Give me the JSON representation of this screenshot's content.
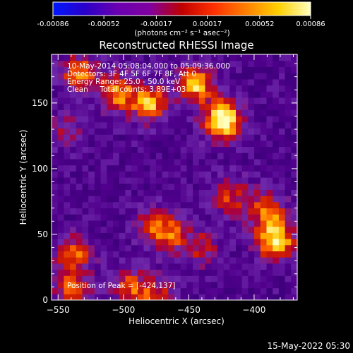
{
  "chart_data": {
    "type": "heatmap",
    "title": "Reconstructed RHESSI Image",
    "xlabel": "Heliocentric X (arcsec)",
    "ylabel": "Heliocentric Y (arcsec)",
    "xlim": [
      -555,
      -367
    ],
    "ylim": [
      0,
      187
    ],
    "x_ticks": [
      -550,
      -500,
      -450,
      -400
    ],
    "y_ticks": [
      0,
      50,
      100,
      150
    ],
    "colorbar": {
      "ticks": [
        "-0.00086",
        "-0.00052",
        "-0.00017",
        "0.00017",
        "0.00052",
        "0.00086"
      ],
      "range": [
        -0.00086,
        0.00086
      ],
      "unit_label": "(photons cm⁻² s⁻¹ asec⁻²)",
      "colors": [
        "#0018ff",
        "#2a00c8",
        "#6a00b0",
        "#8000a0",
        "#c00000",
        "#ff3000",
        "#ff8000",
        "#ffd000",
        "#ffffc0"
      ]
    },
    "annotations": [
      "10-May-2014 05:08:04.000 to 05:09:36.000",
      "Detectors: 3F 4F 5F 6F 7F 8F, Att 0",
      "Energy Range: 25.0 - 50.0 keV",
      "Clean     Total counts: 3.89E+03"
    ],
    "peak_text": "Position of Peak = [-424,137]",
    "peak": [
      -424,
      137
    ],
    "hotspots": [
      {
        "x": -424,
        "y": 137,
        "amp": 1.0
      },
      {
        "x": -445,
        "y": 165,
        "amp": 0.75
      },
      {
        "x": -480,
        "y": 150,
        "amp": 0.7
      },
      {
        "x": -505,
        "y": 158,
        "amp": 0.6
      },
      {
        "x": -533,
        "y": 172,
        "amp": 0.6
      },
      {
        "x": -383,
        "y": 45,
        "amp": 0.85
      },
      {
        "x": -390,
        "y": 68,
        "amp": 0.55
      },
      {
        "x": -538,
        "y": 35,
        "amp": 0.5
      },
      {
        "x": -540,
        "y": 10,
        "amp": 0.5
      },
      {
        "x": -495,
        "y": 10,
        "amp": 0.45
      },
      {
        "x": -463,
        "y": 50,
        "amp": 0.45
      },
      {
        "x": -478,
        "y": 58,
        "amp": 0.4
      },
      {
        "x": -418,
        "y": 80,
        "amp": 0.45
      },
      {
        "x": -440,
        "y": 40,
        "amp": 0.35
      },
      {
        "x": -545,
        "y": 130,
        "amp": 0.3
      },
      {
        "x": -475,
        "y": 5,
        "amp": 0.4
      }
    ]
  },
  "footer_timestamp": "15-May-2022 05:30"
}
